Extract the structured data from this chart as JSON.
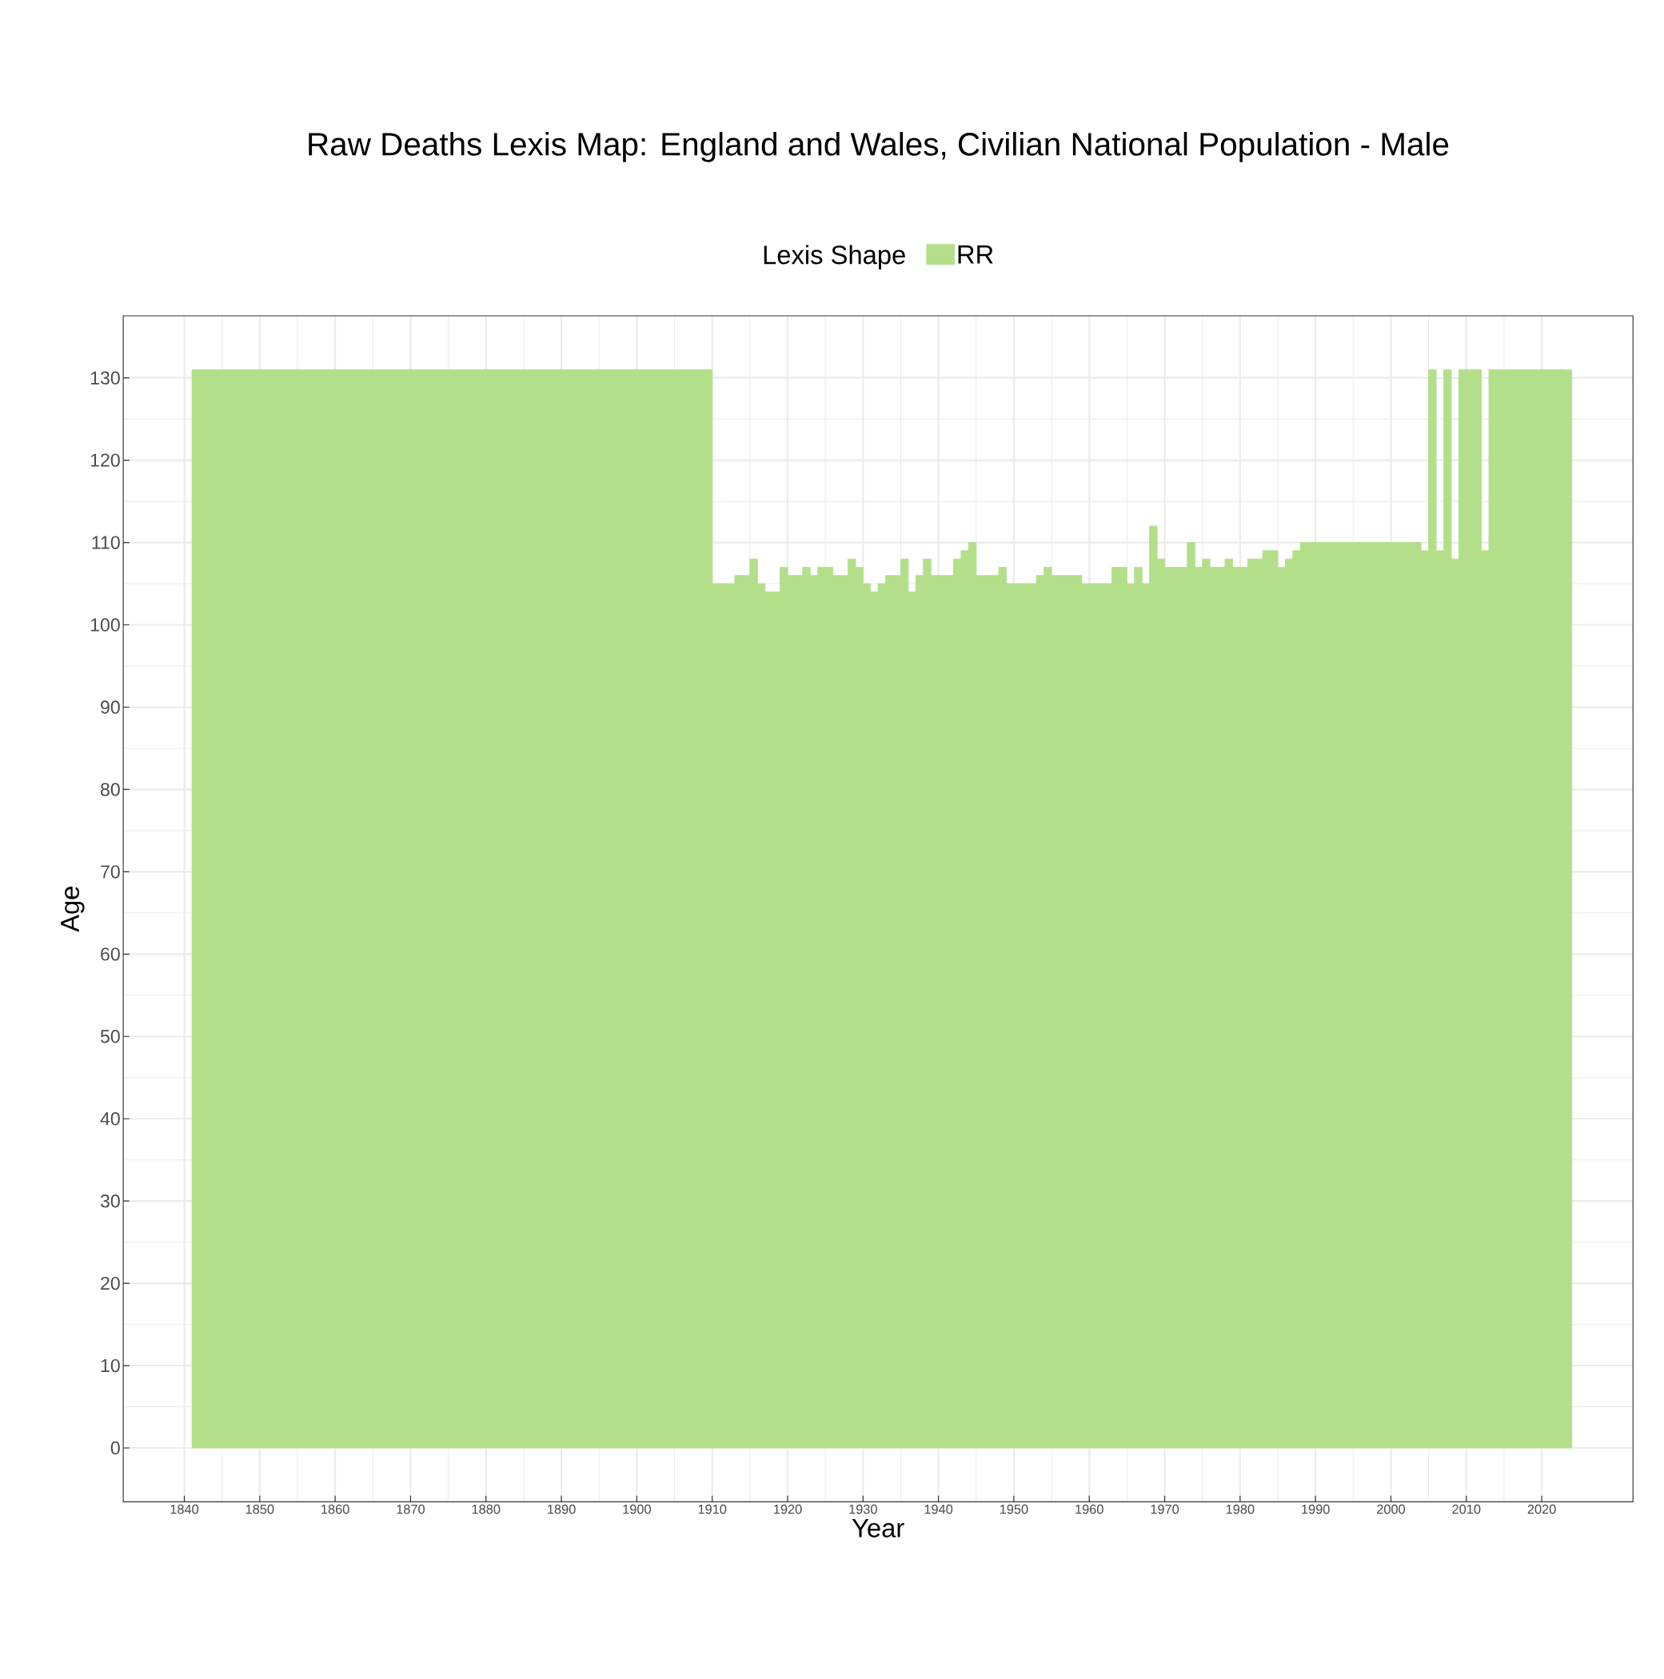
{
  "chart_data": {
    "type": "step",
    "title": "Raw Deaths Lexis Map: England and Wales, Civilian National Population - Male",
    "xlabel": "Year",
    "ylabel": "Age",
    "legend_title": "Lexis Shape",
    "legend": "top",
    "grid": true,
    "x": [
      1841,
      1842,
      1843,
      1844,
      1845,
      1846,
      1847,
      1848,
      1849,
      1850,
      1851,
      1852,
      1853,
      1854,
      1855,
      1856,
      1857,
      1858,
      1859,
      1860,
      1861,
      1862,
      1863,
      1864,
      1865,
      1866,
      1867,
      1868,
      1869,
      1870,
      1871,
      1872,
      1873,
      1874,
      1875,
      1876,
      1877,
      1878,
      1879,
      1880,
      1881,
      1882,
      1883,
      1884,
      1885,
      1886,
      1887,
      1888,
      1889,
      1890,
      1891,
      1892,
      1893,
      1894,
      1895,
      1896,
      1897,
      1898,
      1899,
      1900,
      1901,
      1902,
      1903,
      1904,
      1905,
      1906,
      1907,
      1908,
      1909,
      1910,
      1911,
      1912,
      1913,
      1914,
      1915,
      1916,
      1917,
      1918,
      1919,
      1920,
      1921,
      1922,
      1923,
      1924,
      1925,
      1926,
      1927,
      1928,
      1929,
      1930,
      1931,
      1932,
      1933,
      1934,
      1935,
      1936,
      1937,
      1938,
      1939,
      1940,
      1941,
      1942,
      1943,
      1944,
      1945,
      1946,
      1947,
      1948,
      1949,
      1950,
      1951,
      1952,
      1953,
      1954,
      1955,
      1956,
      1957,
      1958,
      1959,
      1960,
      1961,
      1962,
      1963,
      1964,
      1965,
      1966,
      1967,
      1968,
      1969,
      1970,
      1971,
      1972,
      1973,
      1974,
      1975,
      1976,
      1977,
      1978,
      1979,
      1980,
      1981,
      1982,
      1983,
      1984,
      1985,
      1986,
      1987,
      1988,
      1989,
      1990,
      1991,
      1992,
      1993,
      1994,
      1995,
      1996,
      1997,
      1998,
      1999,
      2000,
      2001,
      2002,
      2003,
      2004,
      2005,
      2006,
      2007,
      2008,
      2009,
      2010,
      2011,
      2012,
      2013,
      2014,
      2015,
      2016,
      2017,
      2018,
      2019,
      2020,
      2021,
      2022,
      2023
    ],
    "series": [
      {
        "name": "RR",
        "color": "#b3df8a",
        "values": [
          131,
          131,
          131,
          131,
          131,
          131,
          131,
          131,
          131,
          131,
          131,
          131,
          131,
          131,
          131,
          131,
          131,
          131,
          131,
          131,
          131,
          131,
          131,
          131,
          131,
          131,
          131,
          131,
          131,
          131,
          131,
          131,
          131,
          131,
          131,
          131,
          131,
          131,
          131,
          131,
          131,
          131,
          131,
          131,
          131,
          131,
          131,
          131,
          131,
          131,
          131,
          131,
          131,
          131,
          131,
          131,
          131,
          131,
          131,
          131,
          131,
          131,
          131,
          131,
          131,
          131,
          131,
          131,
          131,
          105,
          105,
          105,
          106,
          106,
          108,
          105,
          104,
          104,
          107,
          106,
          106,
          107,
          106,
          107,
          107,
          106,
          106,
          108,
          107,
          105,
          104,
          105,
          106,
          106,
          108,
          104,
          106,
          108,
          106,
          106,
          106,
          108,
          109,
          110,
          106,
          106,
          106,
          107,
          105,
          105,
          105,
          105,
          106,
          107,
          106,
          106,
          106,
          106,
          105,
          105,
          105,
          105,
          107,
          107,
          105,
          107,
          105,
          112,
          108,
          107,
          107,
          107,
          110,
          107,
          108,
          107,
          107,
          108,
          107,
          107,
          108,
          108,
          109,
          109,
          107,
          108,
          109,
          110,
          110,
          110,
          110,
          110,
          110,
          110,
          110,
          110,
          110,
          110,
          110,
          110,
          110,
          110,
          110,
          109,
          131,
          109,
          131,
          108,
          131,
          131,
          131,
          109,
          131,
          131,
          131,
          131,
          131,
          131,
          131,
          131,
          131,
          131,
          131
        ]
      }
    ],
    "xlim": [
      1831.9,
      2032.1
    ],
    "ylim": [
      -6.55,
      137.55
    ],
    "xticks": [
      1840,
      1850,
      1860,
      1870,
      1880,
      1890,
      1900,
      1910,
      1920,
      1930,
      1940,
      1950,
      1960,
      1970,
      1980,
      1990,
      2000,
      2010,
      2020
    ],
    "yticks": [
      0,
      10,
      20,
      30,
      40,
      50,
      60,
      70,
      80,
      90,
      100,
      110,
      120,
      130
    ]
  }
}
